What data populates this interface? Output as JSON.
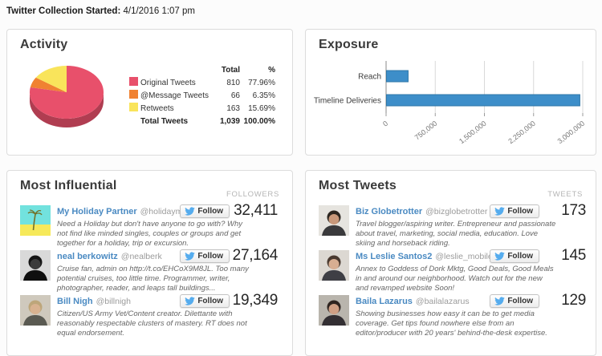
{
  "page": {
    "header_label": "Twitter Collection Started:",
    "header_value": "4/1/2016 1:07 pm"
  },
  "activity": {
    "title": "Activity",
    "table": {
      "header": {
        "total": "Total",
        "pct": "%"
      },
      "rows": [
        {
          "label": "Original Tweets",
          "total": "810",
          "pct": "77.96%",
          "color": "#e8506b"
        },
        {
          "label": "@Message Tweets",
          "total": "66",
          "pct": "6.35%",
          "color": "#f08232"
        },
        {
          "label": "Retweets",
          "total": "163",
          "pct": "15.69%",
          "color": "#f9e45b"
        }
      ],
      "total_row": {
        "label": "Total Tweets",
        "total": "1,039",
        "pct": "100.00%"
      }
    }
  },
  "exposure": {
    "title": "Exposure"
  },
  "most_influential": {
    "title": "Most Influential",
    "metric_label": "FOLLOWERS",
    "follow_label": "Follow",
    "people": [
      {
        "name": "My Holiday Partner",
        "handle": "@holidaymatch",
        "bio": "Need a Holiday but don't have anyone to go with? Why not find like minded singles, couples or groups and get together for a holiday, trip or excursion.",
        "metric": "32,411",
        "avatar": {
          "type": "palm",
          "sky": "#72e2de",
          "sand": "#f6e95a",
          "tree": "#73722a"
        }
      },
      {
        "name": "neal berkowitz",
        "handle": "@nealberk",
        "bio": "Cruise fan, admin on http://t.co/EHCoX9M8JL.  Too many potential cruises, too little time. Programmer, writer, photographer, reader, and leaps tall buildings...",
        "metric": "27,164",
        "avatar": {
          "type": "person",
          "bg": "#d9d9d9",
          "hair": "#141414",
          "skin": "#3c3c3c",
          "shirt": "#0f0f0f"
        }
      },
      {
        "name": "Bill Nigh",
        "handle": "@billnigh",
        "bio": "Citizen/US Army Vet/Content creator. Dilettante with reasonably respectable clusters of mastery. RT does not equal endorsement.",
        "metric": "19,349",
        "avatar": {
          "type": "person",
          "bg": "#cfc9bd",
          "hair": "#bda67a",
          "skin": "#d8b290",
          "shirt": "#5a5a52"
        }
      }
    ]
  },
  "most_tweets": {
    "title": "Most Tweets",
    "metric_label": "TWEETS",
    "follow_label": "Follow",
    "people": [
      {
        "name": "Biz Globetrotter",
        "handle": "@bizglobetrotter",
        "bio": "Travel blogger/aspiring writer. Entrepreneur and passionate about travel, marketing, social media, education. Love skiing and horseback riding.",
        "metric": "173",
        "avatar": {
          "type": "person",
          "bg": "#e6e4df",
          "hair": "#2c2620",
          "skin": "#c8987a",
          "shirt": "#3a3a3c"
        }
      },
      {
        "name": "Ms Leslie Santos2",
        "handle": "@leslie_mobile",
        "bio": "Annex to Goddess of Dork Mktg, Good Deals, Good Meals in and around our neighborhood. Watch out for the new and revamped website Soon!",
        "metric": "145",
        "avatar": {
          "type": "person",
          "bg": "#dcd8d2",
          "hair": "#4a3a30",
          "skin": "#d7ae92",
          "shirt": "#3f3f45"
        }
      },
      {
        "name": "Baila Lazarus",
        "handle": "@bailalazarus",
        "bio": "Showing businesses how easy it can be to get media coverage. Get tips found nowhere else from an editor/producer with 20 years' behind-the-desk expertise.",
        "metric": "129",
        "avatar": {
          "type": "person",
          "bg": "#b9b5ad",
          "hair": "#2e2420",
          "skin": "#cf9f84",
          "shirt": "#332f33"
        }
      }
    ]
  },
  "chart_data": [
    {
      "type": "pie",
      "title": "Activity",
      "labels": [
        "Original Tweets",
        "@Message Tweets",
        "Retweets"
      ],
      "values": [
        810,
        66,
        163
      ],
      "percent_labels": [
        "77.96%",
        "6.35%",
        "15.69%"
      ],
      "total": 1039,
      "colors": [
        "#e8506b",
        "#f08232",
        "#f9e45b"
      ],
      "style": "3d"
    },
    {
      "type": "bar",
      "orientation": "horizontal",
      "title": "Exposure",
      "categories": [
        "Reach",
        "Timeline Deliveries"
      ],
      "values": [
        330000,
        2950000
      ],
      "xlim": [
        0,
        3000000
      ],
      "xticks": [
        0,
        750000,
        1500000,
        2250000,
        3000000
      ],
      "xtick_labels": [
        "0",
        "750,000",
        "1,500,000",
        "2,250,000",
        "3,000,000"
      ],
      "bar_color": "#3d8ec9",
      "bar_border": "#2e77a8",
      "grid": true,
      "legend": false
    }
  ]
}
